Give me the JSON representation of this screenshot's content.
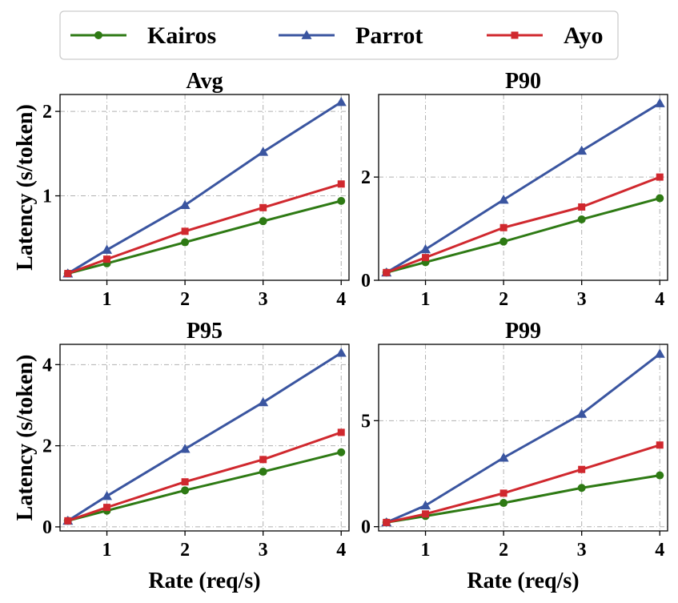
{
  "chart_data": {
    "type": "line",
    "legend": {
      "placement": "top-center",
      "entries": [
        {
          "name": "Kairos",
          "color": "#2e7a14",
          "marker": "circle"
        },
        {
          "name": "Parrot",
          "color": "#3a55a0",
          "marker": "triangle"
        },
        {
          "name": "Ayo",
          "color": "#d0282e",
          "marker": "square"
        }
      ]
    },
    "panels": [
      {
        "title": "Avg",
        "ylabel": "Latency (s/token)",
        "xlabel": "",
        "xlim": [
          0.4,
          4.1
        ],
        "ylim": [
          0,
          2.2
        ],
        "xticks": [
          1,
          2,
          3,
          4
        ],
        "yticks": [
          1,
          2
        ],
        "grid": true,
        "x": [
          0.5,
          1,
          2,
          3,
          4
        ],
        "series": [
          {
            "name": "Kairos",
            "values": [
              0.08,
              0.2,
              0.45,
              0.7,
              0.94
            ]
          },
          {
            "name": "Parrot",
            "values": [
              0.08,
              0.36,
              0.89,
              1.52,
              2.11
            ]
          },
          {
            "name": "Ayo",
            "values": [
              0.08,
              0.25,
              0.58,
              0.86,
              1.14
            ]
          }
        ]
      },
      {
        "title": "P90",
        "ylabel": "",
        "xlabel": "",
        "xlim": [
          0.4,
          4.1
        ],
        "ylim": [
          0,
          3.6
        ],
        "xticks": [
          1,
          2,
          3,
          4
        ],
        "yticks": [
          0,
          2
        ],
        "grid": true,
        "x": [
          0.5,
          1,
          2,
          3,
          4
        ],
        "series": [
          {
            "name": "Kairos",
            "values": [
              0.15,
              0.35,
              0.75,
              1.18,
              1.59
            ]
          },
          {
            "name": "Parrot",
            "values": [
              0.15,
              0.6,
              1.56,
              2.51,
              3.43
            ]
          },
          {
            "name": "Ayo",
            "values": [
              0.15,
              0.44,
              1.02,
              1.42,
              2.0
            ]
          }
        ]
      },
      {
        "title": "P95",
        "ylabel": "Latency (s/token)",
        "xlabel": "Rate (req/s)",
        "xlim": [
          0.4,
          4.1
        ],
        "ylim": [
          -0.1,
          4.5
        ],
        "xticks": [
          1,
          2,
          3,
          4
        ],
        "yticks": [
          0,
          2,
          4
        ],
        "grid": true,
        "x": [
          0.5,
          1,
          2,
          3,
          4
        ],
        "series": [
          {
            "name": "Kairos",
            "values": [
              0.15,
              0.4,
              0.9,
              1.36,
              1.84
            ]
          },
          {
            "name": "Parrot",
            "values": [
              0.15,
              0.76,
              1.92,
              3.07,
              4.29
            ]
          },
          {
            "name": "Ayo",
            "values": [
              0.15,
              0.48,
              1.11,
              1.66,
              2.33
            ]
          }
        ]
      },
      {
        "title": "P99",
        "ylabel": "",
        "xlabel": "Rate (req/s)",
        "xlim": [
          0.4,
          4.1
        ],
        "ylim": [
          -0.2,
          8.6
        ],
        "xticks": [
          1,
          2,
          3,
          4
        ],
        "yticks": [
          0,
          5
        ],
        "grid": true,
        "x": [
          0.5,
          1,
          2,
          3,
          4
        ],
        "series": [
          {
            "name": "Kairos",
            "values": [
              0.2,
              0.5,
              1.12,
              1.83,
              2.42
            ]
          },
          {
            "name": "Parrot",
            "values": [
              0.2,
              1.0,
              3.25,
              5.32,
              8.15
            ]
          },
          {
            "name": "Ayo",
            "values": [
              0.2,
              0.6,
              1.58,
              2.7,
              3.85
            ]
          }
        ]
      }
    ]
  }
}
